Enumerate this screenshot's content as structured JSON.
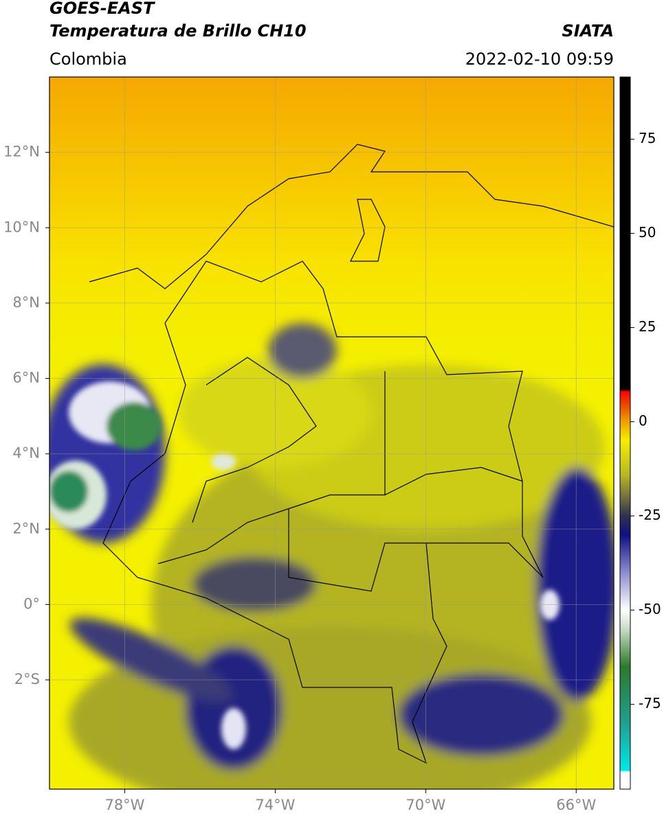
{
  "chart_data": {
    "type": "map",
    "title": "GOES-EAST",
    "subtitle": "Temperatura de Brillo CH10",
    "source": "SIATA",
    "region": "Colombia",
    "datetime": "2022-02-10 09:59",
    "xlim": [
      -80,
      -65
    ],
    "ylim": [
      -4.9,
      14
    ],
    "xticks": [
      {
        "value": -78,
        "label": "78°W"
      },
      {
        "value": -74,
        "label": "74°W"
      },
      {
        "value": -70,
        "label": "70°W"
      },
      {
        "value": -66,
        "label": "66°W"
      }
    ],
    "yticks": [
      {
        "value": -2,
        "label": "2°S"
      },
      {
        "value": 0,
        "label": "0°"
      },
      {
        "value": 2,
        "label": "2°N"
      },
      {
        "value": 4,
        "label": "4°N"
      },
      {
        "value": 6,
        "label": "6°N"
      },
      {
        "value": 8,
        "label": "8°N"
      },
      {
        "value": 10,
        "label": "10°N"
      },
      {
        "value": 12,
        "label": "12°N"
      }
    ],
    "grid": true,
    "colorbar": {
      "lim": [
        -97.5,
        91.5
      ],
      "ticks": [
        -75,
        -50,
        -25,
        0,
        25,
        50,
        75
      ],
      "colormap": [
        {
          "value": -97.5,
          "color": "#ffffff"
        },
        {
          "value": -93,
          "color": "#ffffff"
        },
        {
          "value": -92.5,
          "color": "#00e8e8"
        },
        {
          "value": -80,
          "color": "#20a090"
        },
        {
          "value": -65,
          "color": "#2a7a2a"
        },
        {
          "value": -55,
          "color": "#c8dcc8"
        },
        {
          "value": -50,
          "color": "#ffffff"
        },
        {
          "value": -40,
          "color": "#8c8cd0"
        },
        {
          "value": -30,
          "color": "#101080"
        },
        {
          "value": -25,
          "color": "#303050"
        },
        {
          "value": -20,
          "color": "#707040"
        },
        {
          "value": -14,
          "color": "#b8b820"
        },
        {
          "value": -5,
          "color": "#f4f000"
        },
        {
          "value": 0,
          "color": "#f0a000"
        },
        {
          "value": 5,
          "color": "#e84000"
        },
        {
          "value": 8,
          "color": "#ff0000"
        },
        {
          "value": 8.5,
          "color": "#000000"
        },
        {
          "value": 91.5,
          "color": "#000000"
        }
      ]
    }
  }
}
